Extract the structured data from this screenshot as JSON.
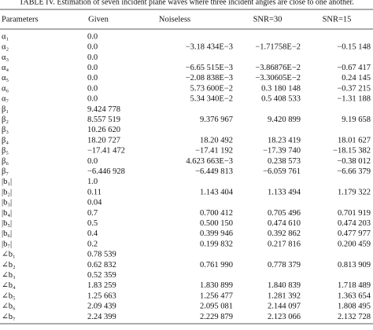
{
  "caption": "TABLE IV. Estimation of seven incident plane waves where three incident angles are close to one another.",
  "table": {
    "header": [
      "Parameters",
      "Given",
      "Noiseless",
      "SNR=30",
      "SNR=15"
    ],
    "rows": [
      [
        "α₁",
        "0.0",
        null,
        null,
        null
      ],
      [
        "α₂",
        "0.0",
        "−3.18 434E−3",
        "−1.71758E−2",
        "−0.15 148"
      ],
      [
        "α₃",
        "0.0",
        null,
        null,
        null
      ],
      [
        "α₄",
        "0.0",
        "−6.65 515E−3",
        "−3.86876E−2",
        "−0.67 417"
      ],
      [
        "α₅",
        "0.0",
        "−2.08 838E−3",
        "−3.30605E−2",
        "0.24 145"
      ],
      [
        "α₆",
        "0.0",
        "5.73 600E−2",
        "0.3 180 148",
        "−0.37 215"
      ],
      [
        "α₇",
        "0.0",
        "5.34 340E−2",
        "0.5 408 533",
        "−1.31 188"
      ],
      [
        "β₁",
        "9.424 778",
        null,
        null,
        null
      ],
      [
        "β₂",
        "8.557 519",
        "9.376 967",
        "9.420 899",
        "9.19 658"
      ],
      [
        "β₃",
        "10.26 620",
        null,
        null,
        null
      ],
      [
        "β₄",
        "18.20 727",
        "18.20 492",
        "18.23 419",
        "18.01 627"
      ],
      [
        "β₅",
        "−17.41 472",
        "−17.41 192",
        "−17.39 740",
        "−18.15 382"
      ],
      [
        "β₆",
        "0.0",
        "4.623 663E−3",
        "0.238 573",
        "−0.38 012"
      ],
      [
        "β₇",
        "−6.446 928",
        "−6.449 813",
        "−6.059 761",
        "−6.66 379"
      ],
      [
        "|b₁|",
        "1.0",
        null,
        null,
        null
      ],
      [
        "|b₂|",
        "0.11",
        "1.143 404",
        "1.133 494",
        "1.179 322"
      ],
      [
        "|b₃|",
        "0.04",
        null,
        null,
        null
      ],
      [
        "|b₄|",
        "0.7",
        "0.700 412",
        "0.705 496",
        "0.701 919"
      ],
      [
        "|b₅|",
        "0.5",
        "0.500 150",
        "0.474 610",
        "0.474 203"
      ],
      [
        "|b₆|",
        "0.4",
        "0.399 946",
        "0.392 862",
        "0.477 977"
      ],
      [
        "|b₇|",
        "0.2",
        "0.199 832",
        "0.217 816",
        "0.200 459"
      ],
      [
        "∠b₁",
        "0.78 539",
        null,
        null,
        null
      ],
      [
        "∠b₂",
        "0.62 832",
        "0.761 990",
        "0.778 379",
        "0.813 909"
      ],
      [
        "∠b₃",
        "0.52 359",
        null,
        null,
        null
      ],
      [
        "∠b₄",
        "1.83 259",
        "1.830 899",
        "1.840 839",
        "1.718 489"
      ],
      [
        "∠b₅",
        "1.25 663",
        "1.256 477",
        "1.281 392",
        "1.363 654"
      ],
      [
        "∠b₆",
        "2.09 439",
        "2.095 081",
        "2.144 097",
        "1.808 495"
      ],
      [
        "∠b₇",
        "2.24 399",
        "2.229 879",
        "2.123 066",
        "2.132 728"
      ]
    ]
  }
}
